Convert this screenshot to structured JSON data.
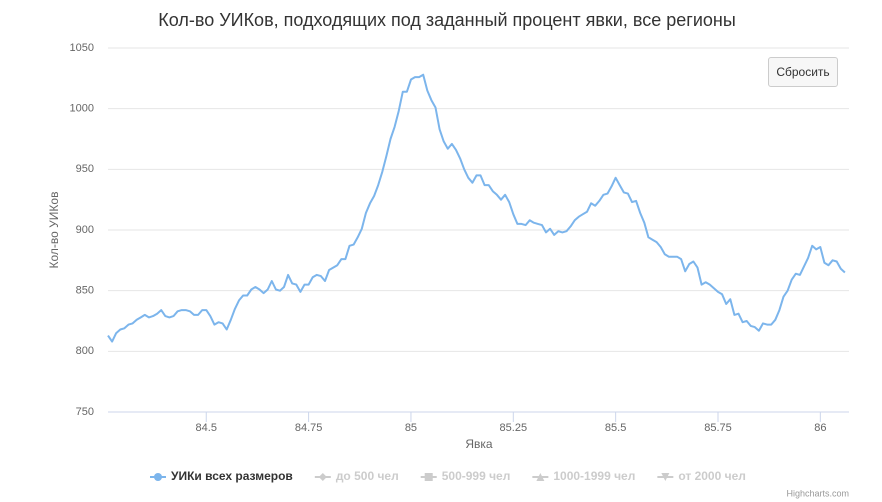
{
  "chart_data": {
    "type": "line",
    "title": "Кол-во УИКов, подходящих под заданный процент явки, все регионы",
    "x_label": "Явка",
    "y_label": "Кол-во УИКов",
    "button": "Сбросить",
    "credits": "Highcharts.com",
    "x": [
      84.26,
      84.27,
      84.28,
      84.29,
      84.3,
      84.31,
      84.32,
      84.33,
      84.34,
      84.35,
      84.36,
      84.37,
      84.38,
      84.39,
      84.4,
      84.41,
      84.42,
      84.43,
      84.44,
      84.45,
      84.46,
      84.47,
      84.48,
      84.49,
      84.5,
      84.51,
      84.52,
      84.53,
      84.54,
      84.55,
      84.56,
      84.57,
      84.58,
      84.59,
      84.6,
      84.61,
      84.62,
      84.63,
      84.64,
      84.65,
      84.66,
      84.67,
      84.68,
      84.69,
      84.7,
      84.71,
      84.72,
      84.73,
      84.74,
      84.75,
      84.76,
      84.77,
      84.78,
      84.79,
      84.8,
      84.81,
      84.82,
      84.83,
      84.84,
      84.85,
      84.86,
      84.87,
      84.88,
      84.89,
      84.9,
      84.91,
      84.92,
      84.93,
      84.94,
      84.95,
      84.96,
      84.97,
      84.98,
      84.99,
      85,
      85.01,
      85.02,
      85.03,
      85.04,
      85.05,
      85.06,
      85.07,
      85.08,
      85.09,
      85.1,
      85.11,
      85.12,
      85.13,
      85.14,
      85.15,
      85.16,
      85.17,
      85.18,
      85.19,
      85.2,
      85.21,
      85.22,
      85.23,
      85.24,
      85.25,
      85.26,
      85.27,
      85.28,
      85.29,
      85.3,
      85.31,
      85.32,
      85.33,
      85.34,
      85.35,
      85.36,
      85.37,
      85.38,
      85.39,
      85.4,
      85.41,
      85.42,
      85.43,
      85.44,
      85.45,
      85.46,
      85.47,
      85.48,
      85.49,
      85.5,
      85.51,
      85.52,
      85.53,
      85.54,
      85.55,
      85.56,
      85.57,
      85.58,
      85.59,
      85.6,
      85.61,
      85.62,
      85.63,
      85.64,
      85.65,
      85.66,
      85.67,
      85.68,
      85.69,
      85.7,
      85.71,
      85.72,
      85.73,
      85.74,
      85.75,
      85.76,
      85.77,
      85.78,
      85.79,
      85.8,
      85.81,
      85.82,
      85.83,
      85.84,
      85.85,
      85.86,
      85.87,
      85.88,
      85.89,
      85.9,
      85.91,
      85.92,
      85.93,
      85.94,
      85.95,
      85.96,
      85.97,
      85.98,
      85.99,
      86,
      86.01,
      86.02,
      86.03,
      86.04,
      86.05,
      86.06
    ],
    "series": [
      {
        "name": "УИКи всех размеров",
        "color": "#7cb5ec",
        "marker": "circle",
        "visible": true,
        "values": [
          813,
          808,
          815,
          818,
          819,
          822,
          823,
          826,
          828,
          830,
          828,
          829,
          831,
          834,
          829,
          828,
          829,
          833,
          834,
          834,
          833,
          830,
          830,
          834,
          834,
          829,
          822,
          824,
          823,
          818,
          826,
          835,
          842,
          846,
          846,
          851,
          853,
          851,
          848,
          851,
          858,
          851,
          850,
          853,
          863,
          856,
          855,
          849,
          855,
          855,
          861,
          863,
          862,
          858,
          867,
          869,
          871,
          876,
          876,
          887,
          888,
          894,
          901,
          914,
          922,
          928,
          937,
          948,
          961,
          975,
          985,
          998,
          1014,
          1014,
          1024,
          1026,
          1026,
          1028,
          1015,
          1007,
          1001,
          983,
          973,
          967,
          971,
          966,
          959,
          950,
          943,
          939,
          945,
          945,
          937,
          937,
          932,
          929,
          925,
          929,
          923,
          913,
          905,
          905,
          904,
          908,
          906,
          905,
          904,
          898,
          901,
          896,
          899,
          898,
          899,
          903,
          908,
          911,
          913,
          915,
          922,
          920,
          924,
          929,
          930,
          936,
          943,
          937,
          931,
          930,
          923,
          924,
          914,
          906,
          894,
          892,
          890,
          886,
          880,
          878,
          878,
          878,
          876,
          866,
          872,
          874,
          869,
          855,
          857,
          855,
          852,
          849,
          847,
          839,
          843,
          830,
          831,
          824,
          825,
          821,
          820,
          817,
          823,
          822,
          822,
          826,
          834,
          845,
          850,
          859,
          864,
          863,
          870,
          877,
          887,
          884,
          886,
          873,
          871,
          875,
          874,
          868,
          865
        ]
      },
      {
        "name": "до 500 чел",
        "color": "#cccccc",
        "marker": "diamond",
        "visible": false
      },
      {
        "name": "500-999 чел",
        "color": "#cccccc",
        "marker": "square",
        "visible": false
      },
      {
        "name": "1000-1999 чел",
        "color": "#cccccc",
        "marker": "triangle",
        "visible": false
      },
      {
        "name": "от 2000 чел",
        "color": "#cccccc",
        "marker": "triangle-down",
        "visible": false
      }
    ],
    "xlim": [
      84.26,
      86.07
    ],
    "xticks": [
      84.5,
      84.75,
      85,
      85.25,
      85.5,
      85.75,
      86
    ],
    "ylim": [
      750,
      1050
    ],
    "yticks": [
      750,
      800,
      850,
      900,
      950,
      1000,
      1050
    ],
    "grid": true
  }
}
